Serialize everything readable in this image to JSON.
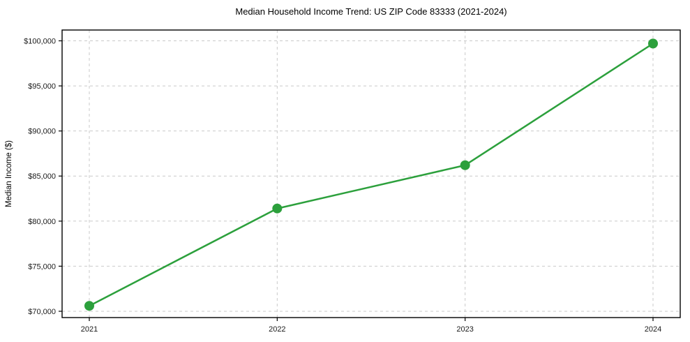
{
  "chart_data": {
    "type": "line",
    "title": "Median Household Income Trend: US ZIP Code 83333 (2021-2024)",
    "xlabel": "",
    "ylabel": "Median Income ($)",
    "categories": [
      "2021",
      "2022",
      "2023",
      "2024"
    ],
    "values": [
      70600,
      81400,
      86200,
      99700
    ],
    "y_ticks": [
      70000,
      75000,
      80000,
      85000,
      90000,
      95000,
      100000
    ],
    "y_tick_labels": [
      "$70,000",
      "$75,000",
      "$80,000",
      "$85,000",
      "$90,000",
      "$95,000",
      "$100,000"
    ],
    "ylim": [
      69300,
      101200
    ],
    "grid": true,
    "legend_position": "none",
    "line_color": "#2ca03c",
    "marker_color": "#2ca03c",
    "gridline_color": "#c9c9c9",
    "spine_color": "#000000",
    "background_color": "#ffffff"
  }
}
